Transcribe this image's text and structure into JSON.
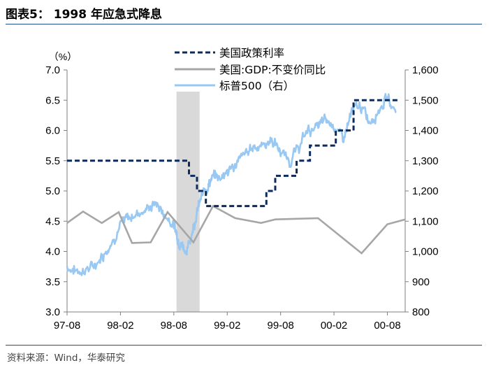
{
  "header": {
    "title": "图表5：  1998 年应急式降息"
  },
  "footer": {
    "source": "资料来源：Wind，华泰研究"
  },
  "chart_data": {
    "type": "line",
    "left_unit_label": "（%）",
    "x_tick_labels": [
      "97-08",
      "98-02",
      "98-08",
      "99-02",
      "99-08",
      "00-02",
      "00-08"
    ],
    "x_tick_index": [
      0,
      6,
      12,
      18,
      24,
      30,
      36
    ],
    "x_range": [
      0,
      38
    ],
    "y_left": {
      "range": [
        3.0,
        7.0
      ],
      "ticks": [
        "3.0",
        "3.5",
        "4.0",
        "4.5",
        "5.0",
        "5.5",
        "6.0",
        "6.5",
        "7.0"
      ]
    },
    "y_right": {
      "range": [
        800,
        1600
      ],
      "ticks": [
        "800",
        "900",
        "1,000",
        "1,100",
        "1,200",
        "1,300",
        "1,400",
        "1,500",
        "1,600"
      ]
    },
    "shaded_region": {
      "x_from": 12.3,
      "x_to": 14.9
    },
    "series": [
      {
        "name": "美国政策利率",
        "axis": "left",
        "style": "dashed-step",
        "color": "#0d2a5c",
        "points": [
          [
            0,
            5.5
          ],
          [
            13.7,
            5.5
          ],
          [
            13.7,
            5.25
          ],
          [
            14.6,
            5.25
          ],
          [
            14.6,
            5.0
          ],
          [
            15.6,
            5.0
          ],
          [
            15.6,
            4.75
          ],
          [
            22.4,
            4.75
          ],
          [
            22.4,
            5.0
          ],
          [
            23.4,
            5.0
          ],
          [
            23.4,
            5.25
          ],
          [
            25.8,
            5.25
          ],
          [
            25.8,
            5.5
          ],
          [
            27.3,
            5.5
          ],
          [
            27.3,
            5.75
          ],
          [
            30.2,
            5.75
          ],
          [
            30.2,
            6.0
          ],
          [
            32.2,
            6.0
          ],
          [
            32.2,
            6.5
          ],
          [
            37.3,
            6.5
          ]
        ]
      },
      {
        "name": "美国:GDP:不变价同比",
        "axis": "left",
        "style": "solid",
        "color": "#a6a6a6",
        "points": [
          [
            0,
            4.47
          ],
          [
            1.8,
            4.66
          ],
          [
            3.9,
            4.47
          ],
          [
            5.8,
            4.65
          ],
          [
            7.3,
            4.14
          ],
          [
            9.4,
            4.15
          ],
          [
            11.3,
            4.65
          ],
          [
            14.2,
            4.15
          ],
          [
            16.4,
            4.75
          ],
          [
            18.9,
            4.55
          ],
          [
            21.8,
            4.47
          ],
          [
            23.4,
            4.53
          ],
          [
            28.2,
            4.55
          ],
          [
            33.1,
            3.97
          ],
          [
            36.0,
            4.45
          ],
          [
            38.0,
            4.53
          ]
        ]
      },
      {
        "name": "标普500（右）",
        "axis": "right",
        "style": "solid-noisy",
        "color": "#99c8f2",
        "anchors": [
          [
            0,
            950
          ],
          [
            1,
            935
          ],
          [
            2,
            940
          ],
          [
            3,
            950
          ],
          [
            4,
            990
          ],
          [
            5,
            1030
          ],
          [
            6,
            1090
          ],
          [
            7,
            1110
          ],
          [
            8,
            1130
          ],
          [
            9,
            1140
          ],
          [
            10,
            1160
          ],
          [
            11,
            1120
          ],
          [
            12,
            1090
          ],
          [
            12.5,
            1040
          ],
          [
            13,
            1020
          ],
          [
            13.5,
            1000
          ],
          [
            14,
            1060
          ],
          [
            14.5,
            1120
          ],
          [
            15,
            1170
          ],
          [
            15.6,
            1205
          ],
          [
            16,
            1230
          ],
          [
            16.6,
            1250
          ],
          [
            17,
            1250
          ],
          [
            18,
            1260
          ],
          [
            19,
            1290
          ],
          [
            20,
            1320
          ],
          [
            21,
            1350
          ],
          [
            22,
            1350
          ],
          [
            23,
            1370
          ],
          [
            24,
            1330
          ],
          [
            25,
            1300
          ],
          [
            26,
            1340
          ],
          [
            27,
            1400
          ],
          [
            28,
            1410
          ],
          [
            29,
            1430
          ],
          [
            30,
            1420
          ],
          [
            31,
            1370
          ],
          [
            32,
            1460
          ],
          [
            33,
            1480
          ],
          [
            34,
            1430
          ],
          [
            35,
            1470
          ],
          [
            36,
            1510
          ],
          [
            37,
            1460
          ]
        ]
      }
    ],
    "legend": [
      {
        "label": "美国政策利率",
        "style": "dashed",
        "color": "#0d2a5c"
      },
      {
        "label": "美国:GDP:不变价同比",
        "style": "solid",
        "color": "#a6a6a6"
      },
      {
        "label": "标普500（右）",
        "style": "solid",
        "color": "#99c8f2"
      }
    ]
  }
}
